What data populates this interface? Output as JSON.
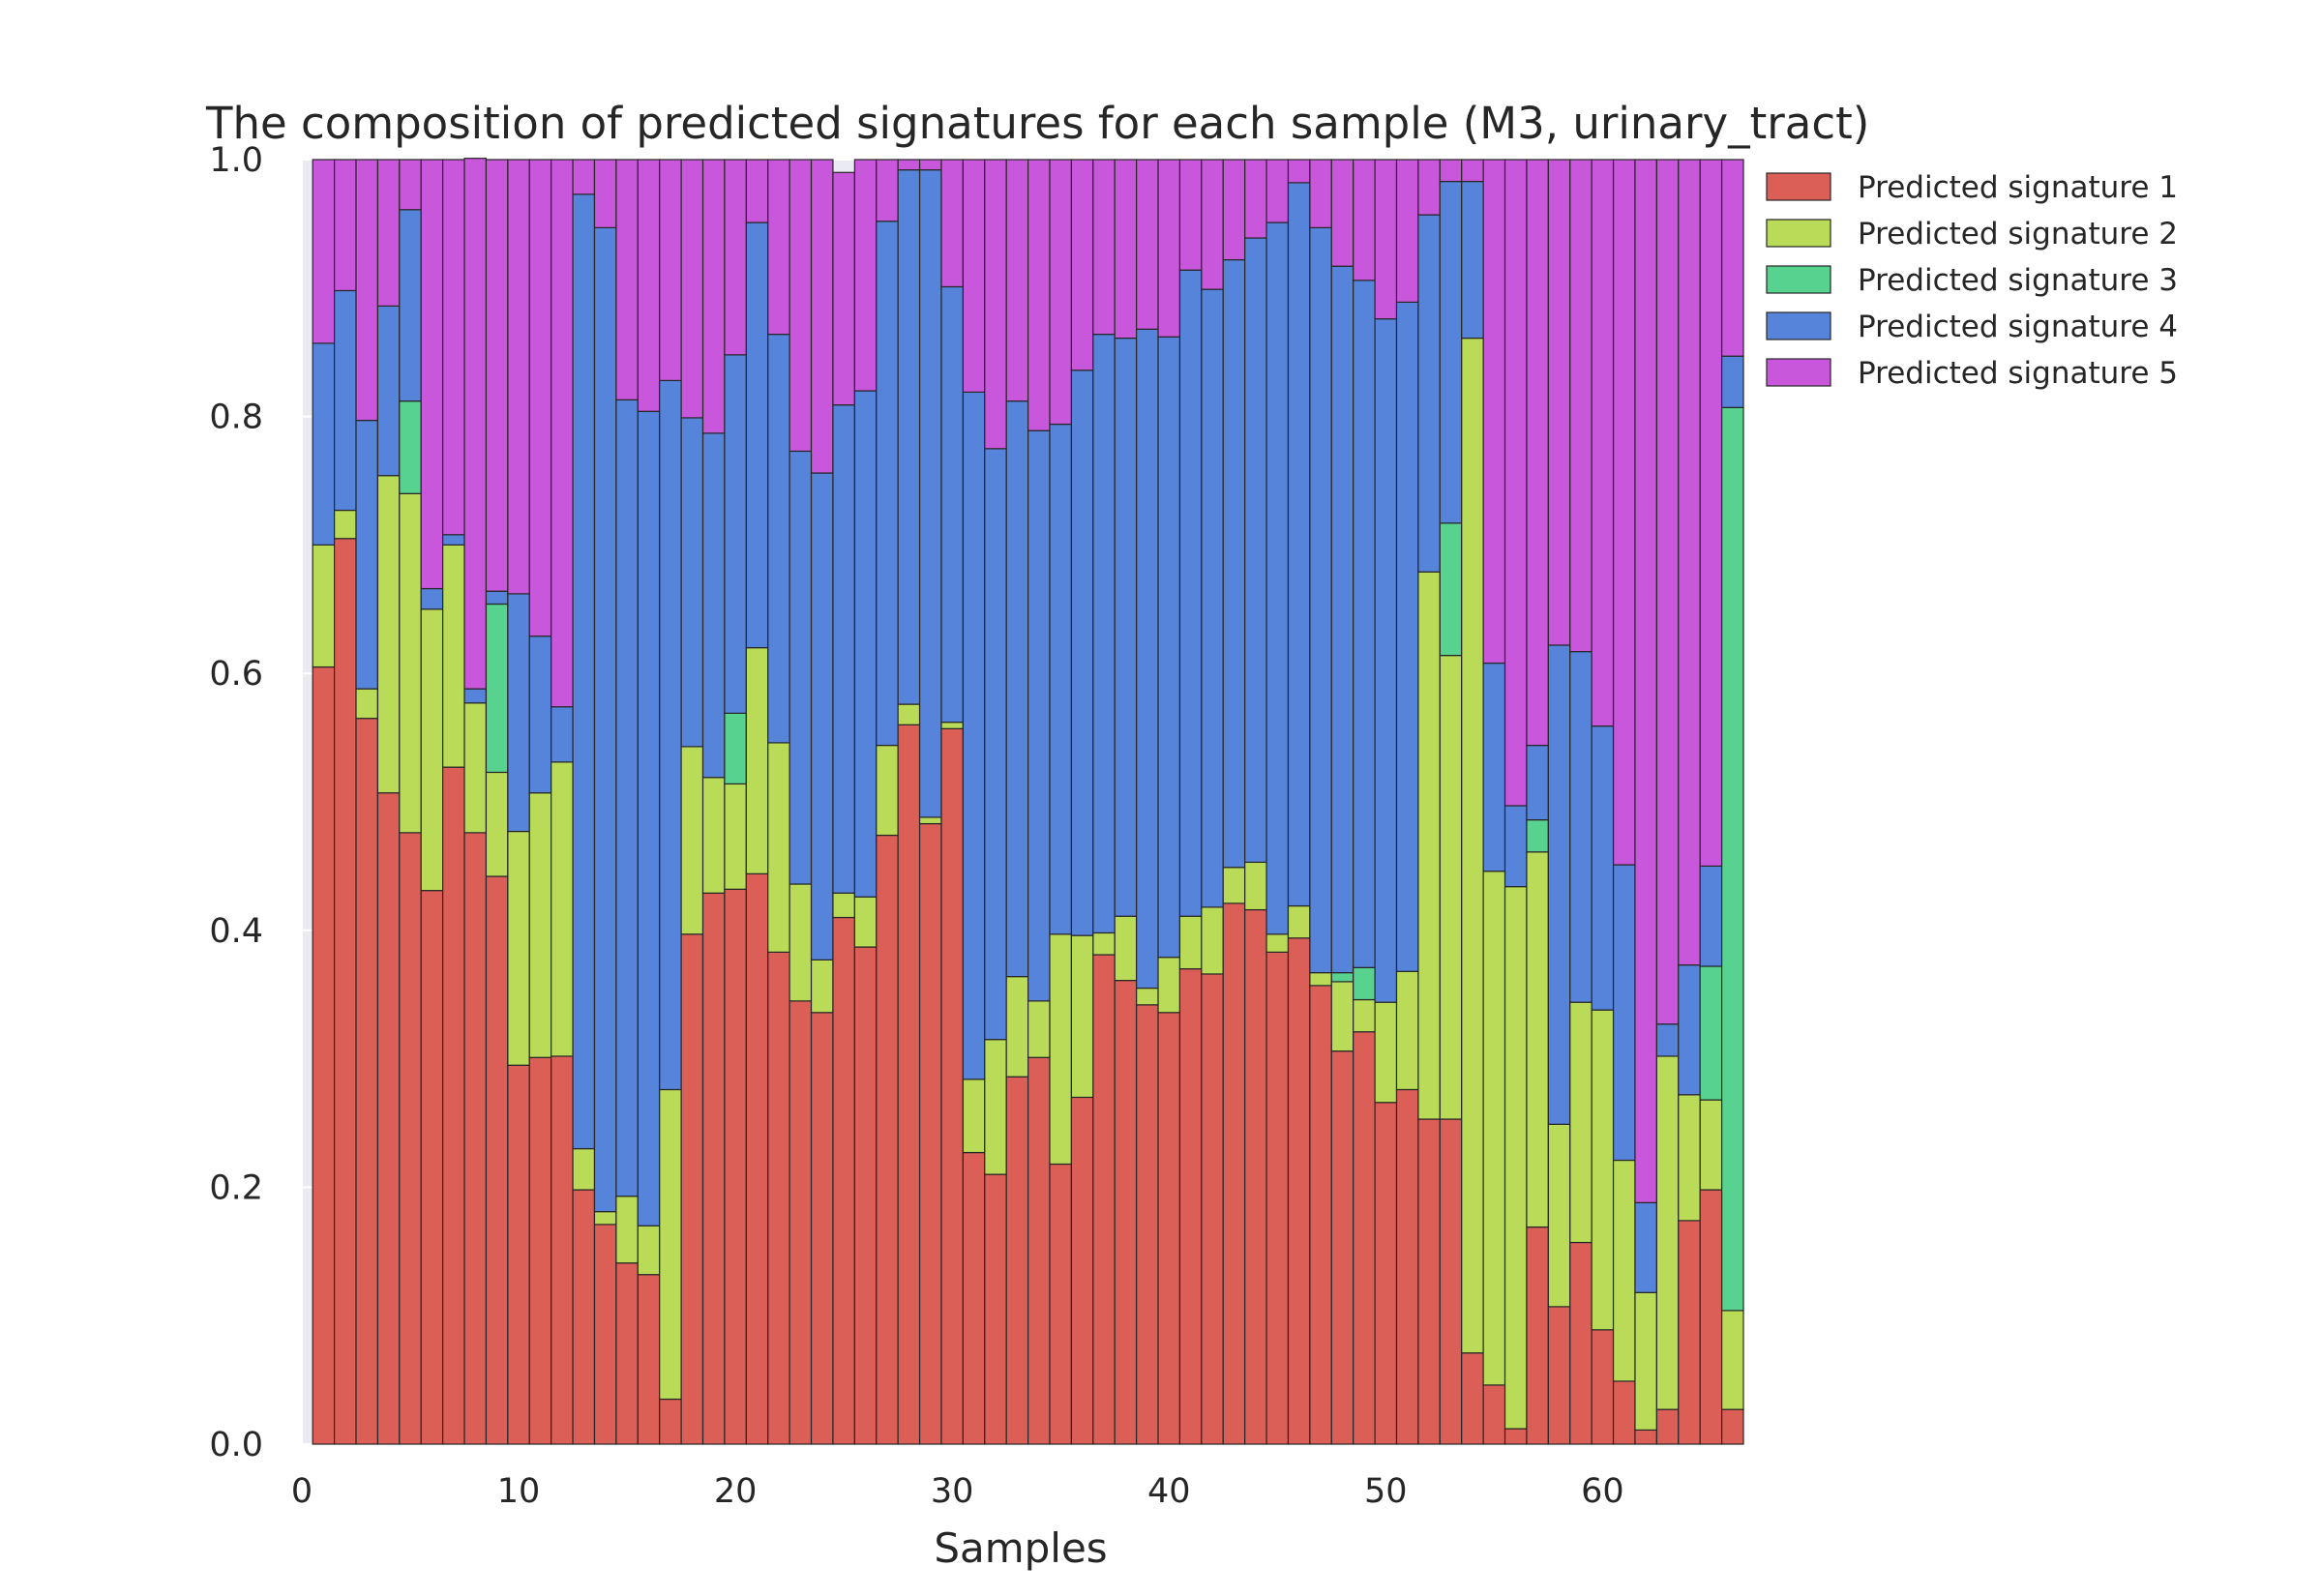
{
  "chart_data": {
    "type": "bar",
    "stacked": true,
    "title": "The composition of predicted signatures for each sample (M3, urinary_tract)",
    "xlabel": "Samples",
    "ylabel": "",
    "xlim": [
      0,
      66.5
    ],
    "ylim": [
      0,
      1.0
    ],
    "xticks": [
      "0",
      "10",
      "20",
      "30",
      "40",
      "50",
      "60"
    ],
    "yticks": [
      "0.0",
      "0.2",
      "0.4",
      "0.6",
      "0.8",
      "1.0"
    ],
    "grid": true,
    "legend_position": "upper right, outside plot area",
    "bar_edge_color": "#262626",
    "background_color": "#eaeaf2",
    "samples": [
      1,
      2,
      3,
      4,
      5,
      6,
      7,
      8,
      9,
      10,
      11,
      12,
      13,
      14,
      15,
      16,
      17,
      18,
      19,
      20,
      21,
      22,
      23,
      24,
      25,
      26,
      27,
      28,
      29,
      30,
      31,
      32,
      33,
      34,
      35,
      36,
      37,
      38,
      39,
      40,
      41,
      42,
      43,
      44,
      45,
      46,
      47,
      48,
      49,
      50,
      51,
      52,
      53,
      54,
      55,
      56,
      57,
      58,
      59,
      60,
      61,
      62,
      63,
      64,
      65,
      66
    ],
    "series": [
      {
        "name": "Predicted signature 1",
        "color": "#db5f57",
        "values": [
          0.605,
          0.705,
          0.565,
          0.507,
          0.476,
          0.431,
          0.527,
          0.476,
          0.442,
          0.295,
          0.301,
          0.302,
          0.198,
          0.171,
          0.141,
          0.132,
          0.035,
          0.397,
          0.429,
          0.432,
          0.444,
          0.383,
          0.345,
          0.336,
          0.41,
          0.387,
          0.474,
          0.56,
          0.483,
          0.557,
          0.227,
          0.21,
          0.286,
          0.301,
          0.218,
          0.27,
          0.381,
          0.361,
          0.342,
          0.336,
          0.37,
          0.366,
          0.421,
          0.416,
          0.383,
          0.394,
          0.357,
          0.306,
          0.321,
          0.266,
          0.276,
          0.253,
          0.253,
          0.071,
          0.046,
          0.012,
          0.169,
          0.107,
          0.157,
          0.089,
          0.049,
          0.011,
          0.027,
          0.174,
          0.198,
          0.027
        ]
      },
      {
        "name": "Predicted signature 2",
        "color": "#b9db57",
        "values": [
          0.095,
          0.022,
          0.023,
          0.247,
          0.264,
          0.219,
          0.173,
          0.101,
          0.081,
          0.182,
          0.206,
          0.229,
          0.032,
          0.01,
          0.052,
          0.038,
          0.241,
          0.146,
          0.09,
          0.082,
          0.176,
          0.163,
          0.091,
          0.041,
          0.019,
          0.039,
          0.07,
          0.016,
          0.005,
          0.005,
          0.057,
          0.105,
          0.078,
          0.044,
          0.179,
          0.126,
          0.017,
          0.05,
          0.013,
          0.043,
          0.041,
          0.052,
          0.028,
          0.037,
          0.014,
          0.025,
          0.01,
          0.054,
          0.025,
          0.078,
          0.092,
          0.426,
          0.361,
          0.79,
          0.4,
          0.422,
          0.292,
          0.142,
          0.187,
          0.249,
          0.172,
          0.107,
          0.275,
          0.098,
          0.07,
          0.077
        ]
      },
      {
        "name": "Predicted signature 3",
        "color": "#57d38f",
        "values": [
          0,
          0,
          0,
          0,
          0.072,
          0,
          0,
          0,
          0.131,
          0,
          0,
          0,
          0,
          0,
          0,
          0,
          0,
          0,
          0,
          0.055,
          0,
          0,
          0,
          0,
          0,
          0,
          0,
          0,
          0,
          0,
          0,
          0,
          0,
          0,
          0,
          0,
          0,
          0,
          0,
          0,
          0,
          0,
          0,
          0,
          0,
          0,
          0,
          0.007,
          0.025,
          0,
          0,
          0,
          0.103,
          0,
          0,
          0,
          0.025,
          0,
          0,
          0,
          0,
          0,
          0,
          0,
          0.104,
          0.703
        ]
      },
      {
        "name": "Predicted signature 4",
        "color": "#5784db",
        "values": [
          0.157,
          0.171,
          0.209,
          0.132,
          0.149,
          0.016,
          0.008,
          0.011,
          0.01,
          0.185,
          0.122,
          0.043,
          0.743,
          0.766,
          0.62,
          0.634,
          0.552,
          0.256,
          0.268,
          0.279,
          0.331,
          0.318,
          0.337,
          0.379,
          0.38,
          0.394,
          0.408,
          0.416,
          0.504,
          0.339,
          0.535,
          0.46,
          0.448,
          0.444,
          0.397,
          0.44,
          0.466,
          0.45,
          0.513,
          0.483,
          0.503,
          0.481,
          0.473,
          0.486,
          0.554,
          0.563,
          0.58,
          0.55,
          0.535,
          0.532,
          0.521,
          0.278,
          0.266,
          0.122,
          0.162,
          0.063,
          0.058,
          0.373,
          0.273,
          0.221,
          0.23,
          0.07,
          0.025,
          0.101,
          0.078,
          0.04
        ]
      },
      {
        "name": "Predicted signature 5",
        "color": "#c957db",
        "values": [
          0.143,
          0.102,
          0.203,
          0.114,
          0.039,
          0.334,
          0.292,
          0.413,
          0.336,
          0.338,
          0.371,
          0.426,
          0.027,
          0.053,
          0.187,
          0.196,
          0.172,
          0.201,
          0.213,
          0.152,
          0.049,
          0.136,
          0.227,
          0.244,
          0.181,
          0.18,
          0.048,
          0.008,
          0.008,
          0.099,
          0.181,
          0.225,
          0.188,
          0.211,
          0.206,
          0.164,
          0.136,
          0.139,
          0.132,
          0.138,
          0.086,
          0.101,
          0.078,
          0.061,
          0.049,
          0.018,
          0.053,
          0.083,
          0.094,
          0.124,
          0.111,
          0.043,
          0.017,
          0.017,
          0.392,
          0.503,
          0.456,
          0.378,
          0.383,
          0.441,
          0.549,
          0.812,
          0.673,
          0.627,
          0.55,
          0.153
        ]
      }
    ]
  }
}
